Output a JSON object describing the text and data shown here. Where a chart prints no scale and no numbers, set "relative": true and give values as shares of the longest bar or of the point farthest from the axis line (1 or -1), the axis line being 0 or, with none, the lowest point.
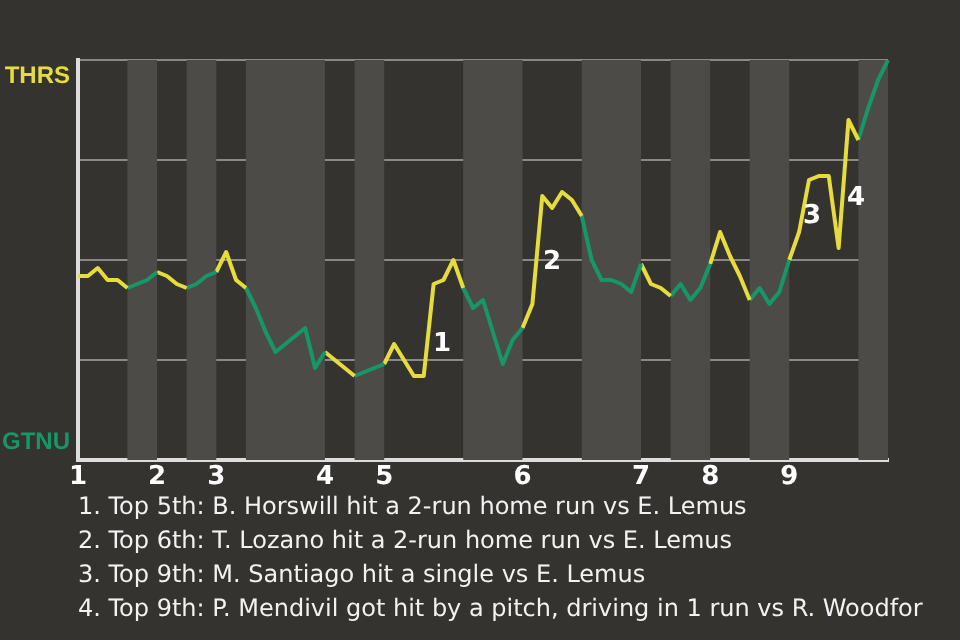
{
  "chart_data": {
    "type": "line",
    "relative": true,
    "categories": [
      "1",
      null,
      null,
      null,
      null,
      null,
      null,
      null,
      "2",
      null,
      null,
      null,
      null,
      null,
      "3",
      null,
      null,
      null,
      null,
      null,
      null,
      null,
      null,
      null,
      null,
      "4",
      null,
      null,
      null,
      null,
      null,
      "5",
      null,
      null,
      null,
      null,
      null,
      null,
      null,
      null,
      null,
      null,
      null,
      null,
      null,
      "6",
      null,
      null,
      null,
      null,
      null,
      null,
      null,
      null,
      null,
      null,
      null,
      "7",
      null,
      null,
      null,
      null,
      null,
      null,
      "8",
      null,
      null,
      null,
      null,
      null,
      null,
      null,
      "9",
      null,
      null,
      null,
      null,
      null,
      null,
      null,
      null,
      null,
      null
    ],
    "series": [
      {
        "color": "#e6dc3c",
        "values": [
          0.46,
          0.46,
          0.48,
          0.45,
          0.45,
          0.43,
          null,
          null,
          null,
          null,
          null,
          null,
          null,
          null,
          null,
          null,
          null,
          null,
          null,
          null,
          null,
          null,
          null,
          null,
          null,
          null,
          null,
          null,
          null,
          null,
          null,
          null,
          null,
          null,
          null,
          null,
          null,
          null,
          null,
          null,
          null,
          null,
          null,
          null,
          null,
          null,
          null,
          null,
          null,
          null,
          null,
          null,
          null,
          null,
          null,
          null,
          null,
          null,
          null,
          null,
          null,
          null,
          null,
          null,
          null,
          null,
          null,
          null,
          null,
          null,
          null,
          null,
          null,
          null,
          null,
          null,
          null,
          null,
          null,
          null,
          null,
          null,
          null
        ]
      },
      {
        "color": "#17966a",
        "values": [
          null,
          null,
          null,
          null,
          null,
          0.43,
          0.44,
          0.45,
          0.47,
          null,
          null,
          null,
          null,
          null,
          null,
          null,
          null,
          null,
          null,
          null,
          null,
          null,
          null,
          null,
          null,
          null,
          null,
          null,
          null,
          null,
          null,
          null,
          null,
          null,
          null,
          null,
          null,
          null,
          null,
          null,
          null,
          null,
          null,
          null,
          null,
          null,
          null,
          null,
          null,
          null,
          null,
          null,
          null,
          null,
          null,
          null,
          null,
          null,
          null,
          null,
          null,
          null,
          null,
          null,
          null,
          null,
          null,
          null,
          null,
          null,
          null,
          null,
          null,
          null,
          null,
          null,
          null,
          null,
          null,
          null,
          null,
          null,
          null
        ]
      },
      {
        "color": "#e6dc3c",
        "values": [
          null,
          null,
          null,
          null,
          null,
          null,
          null,
          null,
          0.47,
          0.46,
          0.44,
          0.43,
          null,
          null,
          null,
          null,
          null,
          null,
          null,
          null,
          null,
          null,
          null,
          null,
          null,
          null,
          null,
          null,
          null,
          null,
          null,
          null,
          null,
          null,
          null,
          null,
          null,
          null,
          null,
          null,
          null,
          null,
          null,
          null,
          null,
          null,
          null,
          null,
          null,
          null,
          null,
          null,
          null,
          null,
          null,
          null,
          null,
          null,
          null,
          null,
          null,
          null,
          null,
          null,
          null,
          null,
          null,
          null,
          null,
          null,
          null,
          null,
          null,
          null,
          null,
          null,
          null,
          null,
          null,
          null,
          null,
          null,
          null
        ]
      },
      {
        "color": "#17966a",
        "values": [
          null,
          null,
          null,
          null,
          null,
          null,
          null,
          null,
          null,
          null,
          null,
          0.43,
          0.44,
          0.46,
          0.47,
          null,
          null,
          null,
          null,
          null,
          null,
          null,
          null,
          null,
          null,
          null,
          null,
          null,
          null,
          null,
          null,
          null,
          null,
          null,
          null,
          null,
          null,
          null,
          null,
          null,
          null,
          null,
          null,
          null,
          null,
          null,
          null,
          null,
          null,
          null,
          null,
          null,
          null,
          null,
          null,
          null,
          null,
          null,
          null,
          null,
          null,
          null,
          null,
          null,
          null,
          null,
          null,
          null,
          null,
          null,
          null,
          null,
          null,
          null,
          null,
          null,
          null,
          null,
          null,
          null,
          null,
          null,
          null
        ]
      },
      {
        "color": "#e6dc3c",
        "values": [
          null,
          null,
          null,
          null,
          null,
          null,
          null,
          null,
          null,
          null,
          null,
          null,
          null,
          null,
          0.47,
          0.52,
          0.45,
          0.43,
          null,
          null,
          null,
          null,
          null,
          null,
          null,
          null,
          null,
          null,
          null,
          null,
          null,
          null,
          null,
          null,
          null,
          null,
          null,
          null,
          null,
          null,
          null,
          null,
          null,
          null,
          null,
          null,
          null,
          null,
          null,
          null,
          null,
          null,
          null,
          null,
          null,
          null,
          null,
          null,
          null,
          null,
          null,
          null,
          null,
          null,
          null,
          null,
          null,
          null,
          null,
          null,
          null,
          null,
          null,
          null,
          null,
          null,
          null,
          null,
          null,
          null,
          null,
          null,
          null
        ]
      },
      {
        "color": "#17966a",
        "values": [
          null,
          null,
          null,
          null,
          null,
          null,
          null,
          null,
          null,
          null,
          null,
          null,
          null,
          null,
          null,
          null,
          null,
          0.43,
          0.38,
          0.32,
          0.27,
          0.29,
          0.31,
          0.33,
          0.23,
          0.27,
          null,
          null,
          null,
          null,
          null,
          null,
          null,
          null,
          null,
          null,
          null,
          null,
          null,
          null,
          null,
          null,
          null,
          null,
          null,
          null,
          null,
          null,
          null,
          null,
          null,
          null,
          null,
          null,
          null,
          null,
          null,
          null,
          null,
          null,
          null,
          null,
          null,
          null,
          null,
          null,
          null,
          null,
          null,
          null,
          null,
          null,
          null,
          null,
          null,
          null,
          null,
          null,
          null,
          null,
          null,
          null,
          null
        ]
      },
      {
        "color": "#e6dc3c",
        "values": [
          null,
          null,
          null,
          null,
          null,
          null,
          null,
          null,
          null,
          null,
          null,
          null,
          null,
          null,
          null,
          null,
          null,
          null,
          null,
          null,
          null,
          null,
          null,
          null,
          null,
          0.27,
          0.25,
          0.23,
          0.21,
          null,
          null,
          null,
          null,
          null,
          null,
          null,
          null,
          null,
          null,
          null,
          null,
          null,
          null,
          null,
          null,
          null,
          null,
          null,
          null,
          null,
          null,
          null,
          null,
          null,
          null,
          null,
          null,
          null,
          null,
          null,
          null,
          null,
          null,
          null,
          null,
          null,
          null,
          null,
          null,
          null,
          null,
          null,
          null,
          null,
          null,
          null,
          null,
          null,
          null,
          null,
          null,
          null,
          null
        ]
      },
      {
        "color": "#17966a",
        "values": [
          null,
          null,
          null,
          null,
          null,
          null,
          null,
          null,
          null,
          null,
          null,
          null,
          null,
          null,
          null,
          null,
          null,
          null,
          null,
          null,
          null,
          null,
          null,
          null,
          null,
          null,
          null,
          null,
          0.21,
          0.22,
          0.23,
          0.24,
          null,
          null,
          null,
          null,
          null,
          null,
          null,
          null,
          null,
          null,
          null,
          null,
          null,
          null,
          null,
          null,
          null,
          null,
          null,
          null,
          null,
          null,
          null,
          null,
          null,
          null,
          null,
          null,
          null,
          null,
          null,
          null,
          null,
          null,
          null,
          null,
          null,
          null,
          null,
          null,
          null,
          null,
          null,
          null,
          null,
          null,
          null,
          null,
          null,
          null,
          null
        ]
      },
      {
        "color": "#e6dc3c",
        "values": [
          null,
          null,
          null,
          null,
          null,
          null,
          null,
          null,
          null,
          null,
          null,
          null,
          null,
          null,
          null,
          null,
          null,
          null,
          null,
          null,
          null,
          null,
          null,
          null,
          null,
          null,
          null,
          null,
          null,
          null,
          null,
          0.24,
          0.29,
          0.25,
          0.21,
          0.21,
          0.44,
          0.45,
          0.5,
          0.43,
          null,
          null,
          null,
          null,
          null,
          null,
          null,
          null,
          null,
          null,
          null,
          null,
          null,
          null,
          null,
          null,
          null,
          null,
          null,
          null,
          null,
          null,
          null,
          null,
          null,
          null,
          null,
          null,
          null,
          null,
          null,
          null,
          null,
          null,
          null,
          null,
          null,
          null,
          null,
          null,
          null,
          null,
          null
        ]
      },
      {
        "color": "#17966a",
        "values": [
          null,
          null,
          null,
          null,
          null,
          null,
          null,
          null,
          null,
          null,
          null,
          null,
          null,
          null,
          null,
          null,
          null,
          null,
          null,
          null,
          null,
          null,
          null,
          null,
          null,
          null,
          null,
          null,
          null,
          null,
          null,
          null,
          null,
          null,
          null,
          null,
          null,
          null,
          null,
          0.43,
          0.38,
          0.4,
          0.32,
          0.24,
          0.3,
          0.33,
          null,
          null,
          null,
          null,
          null,
          null,
          null,
          null,
          null,
          null,
          null,
          null,
          null,
          null,
          null,
          null,
          null,
          null,
          null,
          null,
          null,
          null,
          null,
          null,
          null,
          null,
          null,
          null,
          null,
          null,
          null,
          null,
          null,
          null,
          null,
          null,
          null
        ]
      },
      {
        "color": "#e6dc3c",
        "values": [
          null,
          null,
          null,
          null,
          null,
          null,
          null,
          null,
          null,
          null,
          null,
          null,
          null,
          null,
          null,
          null,
          null,
          null,
          null,
          null,
          null,
          null,
          null,
          null,
          null,
          null,
          null,
          null,
          null,
          null,
          null,
          null,
          null,
          null,
          null,
          null,
          null,
          null,
          null,
          null,
          null,
          null,
          null,
          null,
          null,
          0.33,
          0.39,
          0.66,
          0.63,
          0.67,
          0.65,
          0.61,
          null,
          null,
          null,
          null,
          null,
          null,
          null,
          null,
          null,
          null,
          null,
          null,
          null,
          null,
          null,
          null,
          null,
          null,
          null,
          null,
          null,
          null,
          null,
          null,
          null,
          null,
          null,
          null,
          null,
          null,
          null
        ]
      },
      {
        "color": "#17966a",
        "values": [
          null,
          null,
          null,
          null,
          null,
          null,
          null,
          null,
          null,
          null,
          null,
          null,
          null,
          null,
          null,
          null,
          null,
          null,
          null,
          null,
          null,
          null,
          null,
          null,
          null,
          null,
          null,
          null,
          null,
          null,
          null,
          null,
          null,
          null,
          null,
          null,
          null,
          null,
          null,
          null,
          null,
          null,
          null,
          null,
          null,
          null,
          null,
          null,
          null,
          null,
          null,
          0.61,
          0.5,
          0.45,
          0.45,
          0.44,
          0.42,
          0.49,
          null,
          null,
          null,
          null,
          null,
          null,
          null,
          null,
          null,
          null,
          null,
          null,
          null,
          null,
          null,
          null,
          null,
          null,
          null,
          null,
          null,
          null,
          null,
          null,
          null
        ]
      },
      {
        "color": "#e6dc3c",
        "values": [
          null,
          null,
          null,
          null,
          null,
          null,
          null,
          null,
          null,
          null,
          null,
          null,
          null,
          null,
          null,
          null,
          null,
          null,
          null,
          null,
          null,
          null,
          null,
          null,
          null,
          null,
          null,
          null,
          null,
          null,
          null,
          null,
          null,
          null,
          null,
          null,
          null,
          null,
          null,
          null,
          null,
          null,
          null,
          null,
          null,
          null,
          null,
          null,
          null,
          null,
          null,
          null,
          null,
          null,
          null,
          null,
          null,
          0.49,
          0.44,
          0.43,
          0.41,
          null,
          null,
          null,
          null,
          null,
          null,
          null,
          null,
          null,
          null,
          null,
          null,
          null,
          null,
          null,
          null,
          null,
          null,
          null,
          null,
          null,
          null
        ]
      },
      {
        "color": "#17966a",
        "values": [
          null,
          null,
          null,
          null,
          null,
          null,
          null,
          null,
          null,
          null,
          null,
          null,
          null,
          null,
          null,
          null,
          null,
          null,
          null,
          null,
          null,
          null,
          null,
          null,
          null,
          null,
          null,
          null,
          null,
          null,
          null,
          null,
          null,
          null,
          null,
          null,
          null,
          null,
          null,
          null,
          null,
          null,
          null,
          null,
          null,
          null,
          null,
          null,
          null,
          null,
          null,
          null,
          null,
          null,
          null,
          null,
          null,
          null,
          null,
          null,
          0.41,
          0.44,
          0.4,
          0.43,
          0.49,
          null,
          null,
          null,
          null,
          null,
          null,
          null,
          null,
          null,
          null,
          null,
          null,
          null,
          null,
          null,
          null,
          null,
          null
        ]
      },
      {
        "color": "#e6dc3c",
        "values": [
          null,
          null,
          null,
          null,
          null,
          null,
          null,
          null,
          null,
          null,
          null,
          null,
          null,
          null,
          null,
          null,
          null,
          null,
          null,
          null,
          null,
          null,
          null,
          null,
          null,
          null,
          null,
          null,
          null,
          null,
          null,
          null,
          null,
          null,
          null,
          null,
          null,
          null,
          null,
          null,
          null,
          null,
          null,
          null,
          null,
          null,
          null,
          null,
          null,
          null,
          null,
          null,
          null,
          null,
          null,
          null,
          null,
          null,
          null,
          null,
          null,
          null,
          null,
          null,
          0.49,
          0.57,
          0.51,
          0.46,
          0.4,
          null,
          null,
          null,
          null,
          null,
          null,
          null,
          null,
          null,
          null,
          null,
          null,
          null,
          null
        ]
      },
      {
        "color": "#17966a",
        "values": [
          null,
          null,
          null,
          null,
          null,
          null,
          null,
          null,
          null,
          null,
          null,
          null,
          null,
          null,
          null,
          null,
          null,
          null,
          null,
          null,
          null,
          null,
          null,
          null,
          null,
          null,
          null,
          null,
          null,
          null,
          null,
          null,
          null,
          null,
          null,
          null,
          null,
          null,
          null,
          null,
          null,
          null,
          null,
          null,
          null,
          null,
          null,
          null,
          null,
          null,
          null,
          null,
          null,
          null,
          null,
          null,
          null,
          null,
          null,
          null,
          null,
          null,
          null,
          null,
          null,
          null,
          null,
          null,
          0.4,
          0.43,
          0.39,
          0.42,
          0.5,
          null,
          null,
          null,
          null,
          null,
          null,
          null,
          null,
          null,
          null
        ]
      },
      {
        "color": "#e6dc3c",
        "values": [
          null,
          null,
          null,
          null,
          null,
          null,
          null,
          null,
          null,
          null,
          null,
          null,
          null,
          null,
          null,
          null,
          null,
          null,
          null,
          null,
          null,
          null,
          null,
          null,
          null,
          null,
          null,
          null,
          null,
          null,
          null,
          null,
          null,
          null,
          null,
          null,
          null,
          null,
          null,
          null,
          null,
          null,
          null,
          null,
          null,
          null,
          null,
          null,
          null,
          null,
          null,
          null,
          null,
          null,
          null,
          null,
          null,
          null,
          null,
          null,
          null,
          null,
          null,
          null,
          null,
          null,
          null,
          null,
          null,
          null,
          null,
          null,
          0.5,
          0.57,
          0.7,
          0.71,
          0.71,
          0.53,
          0.85,
          0.8,
          null,
          null,
          null
        ]
      },
      {
        "color": "#17966a",
        "values": [
          null,
          null,
          null,
          null,
          null,
          null,
          null,
          null,
          null,
          null,
          null,
          null,
          null,
          null,
          null,
          null,
          null,
          null,
          null,
          null,
          null,
          null,
          null,
          null,
          null,
          null,
          null,
          null,
          null,
          null,
          null,
          null,
          null,
          null,
          null,
          null,
          null,
          null,
          null,
          null,
          null,
          null,
          null,
          null,
          null,
          null,
          null,
          null,
          null,
          null,
          null,
          null,
          null,
          null,
          null,
          null,
          null,
          null,
          null,
          null,
          null,
          null,
          null,
          null,
          null,
          null,
          null,
          null,
          null,
          null,
          null,
          null,
          null,
          null,
          null,
          null,
          null,
          null,
          null,
          0.8,
          0.88,
          0.95,
          1.0
        ]
      }
    ],
    "grid": "y",
    "legend": false,
    "marker": "none",
    "annotations": [
      "THRS",
      "GTNU",
      "1",
      "2",
      "3",
      "4",
      "1. Top 5th: B. Horswill hit a 2-run home run vs E. Lemus",
      "2. Top 6th: T. Lozano hit a 2-run home run vs E. Lemus",
      "3. Top 9th: M. Santiago hit a single vs E. Lemus",
      "4. Top 9th: P. Mendivil got hit by a pitch, driving in 1 run vs R. Woodfor"
    ]
  }
}
